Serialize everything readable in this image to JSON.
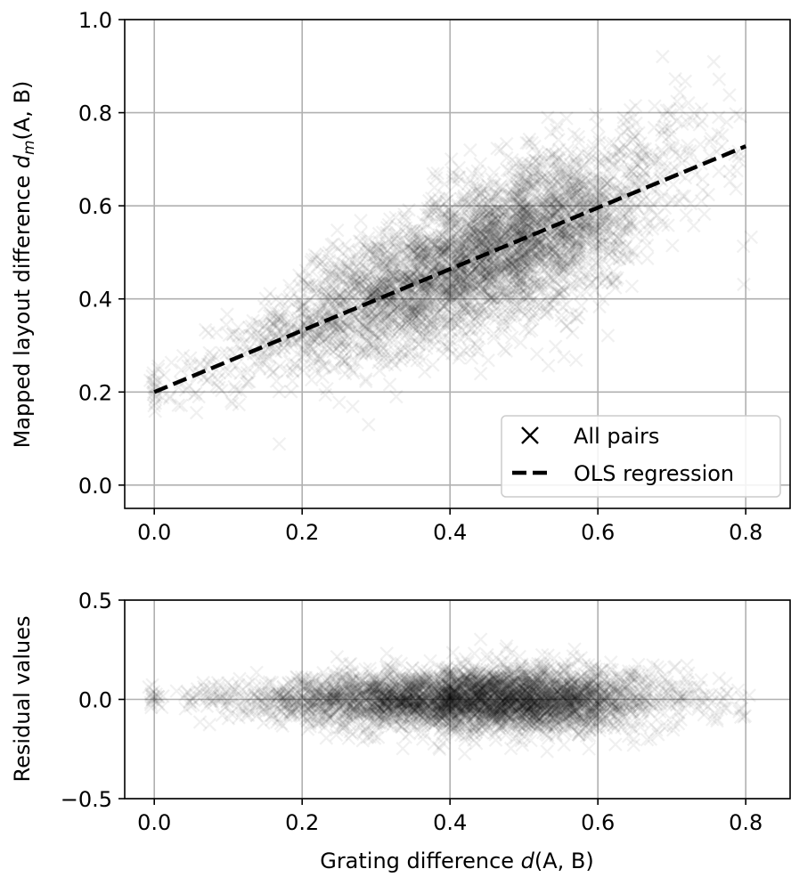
{
  "chart_data": [
    {
      "type": "scatter",
      "panel": "top",
      "xlabel": "",
      "ylabel_text": "Mapped layout difference ",
      "ylabel_math": "d",
      "ylabel_sub": "m",
      "ylabel_args": "(A, B)",
      "xlim": [
        -0.04,
        0.86
      ],
      "ylim": [
        -0.05,
        1.0
      ],
      "xticks": [
        0.0,
        0.2,
        0.4,
        0.6,
        0.8
      ],
      "xtick_labels": [
        "0.0",
        "0.2",
        "0.4",
        "0.6",
        "0.8"
      ],
      "yticks": [
        0.0,
        0.2,
        0.4,
        0.6,
        0.8,
        1.0
      ],
      "ytick_labels": [
        "0.0",
        "0.2",
        "0.4",
        "0.6",
        "0.8",
        "1.0"
      ],
      "grid": true,
      "legend_position": "lower-right",
      "legend": [
        {
          "label": "All pairs",
          "marker": "x"
        },
        {
          "label": "OLS regression",
          "style": "dashed"
        }
      ],
      "regression": {
        "intercept": 0.2,
        "slope": 0.66,
        "x_range": [
          0.0,
          0.8
        ]
      },
      "density_clusters": [
        {
          "x": 0.0,
          "y": 0.21,
          "n": 20,
          "sx": 0.004,
          "sy": 0.03
        },
        {
          "x": 0.05,
          "y": 0.22,
          "n": 25,
          "sx": 0.02,
          "sy": 0.04
        },
        {
          "x": 0.1,
          "y": 0.26,
          "n": 40,
          "sx": 0.02,
          "sy": 0.05
        },
        {
          "x": 0.15,
          "y": 0.31,
          "n": 70,
          "sx": 0.02,
          "sy": 0.05
        },
        {
          "x": 0.2,
          "y": 0.34,
          "n": 160,
          "sx": 0.02,
          "sy": 0.06
        },
        {
          "x": 0.25,
          "y": 0.37,
          "n": 240,
          "sx": 0.02,
          "sy": 0.07
        },
        {
          "x": 0.3,
          "y": 0.4,
          "n": 330,
          "sx": 0.02,
          "sy": 0.07
        },
        {
          "x": 0.35,
          "y": 0.43,
          "n": 420,
          "sx": 0.02,
          "sy": 0.07
        },
        {
          "x": 0.4,
          "y": 0.47,
          "n": 520,
          "sx": 0.02,
          "sy": 0.08
        },
        {
          "x": 0.45,
          "y": 0.5,
          "n": 560,
          "sx": 0.02,
          "sy": 0.08
        },
        {
          "x": 0.5,
          "y": 0.53,
          "n": 560,
          "sx": 0.02,
          "sy": 0.08
        },
        {
          "x": 0.55,
          "y": 0.55,
          "n": 460,
          "sx": 0.02,
          "sy": 0.08
        },
        {
          "x": 0.6,
          "y": 0.58,
          "n": 280,
          "sx": 0.02,
          "sy": 0.08
        },
        {
          "x": 0.65,
          "y": 0.64,
          "n": 130,
          "sx": 0.02,
          "sy": 0.08
        },
        {
          "x": 0.7,
          "y": 0.7,
          "n": 60,
          "sx": 0.02,
          "sy": 0.08
        },
        {
          "x": 0.75,
          "y": 0.72,
          "n": 30,
          "sx": 0.02,
          "sy": 0.08
        },
        {
          "x": 0.79,
          "y": 0.68,
          "n": 10,
          "sx": 0.01,
          "sy": 0.1
        }
      ]
    },
    {
      "type": "scatter",
      "panel": "bottom",
      "xlabel_text": "Grating difference ",
      "xlabel_math": "d",
      "xlabel_args": "(A, B)",
      "ylabel": "Residual values",
      "xlim": [
        -0.04,
        0.86
      ],
      "ylim": [
        -0.5,
        0.5
      ],
      "xticks": [
        0.0,
        0.2,
        0.4,
        0.6,
        0.8
      ],
      "xtick_labels": [
        "0.0",
        "0.2",
        "0.4",
        "0.6",
        "0.8"
      ],
      "yticks": [
        -0.5,
        0.0,
        0.5
      ],
      "ytick_labels": [
        "−0.5",
        "0.0",
        "0.5"
      ],
      "grid": true,
      "density_clusters": [
        {
          "x": 0.0,
          "y": 0.0,
          "n": 20,
          "sx": 0.004,
          "sy": 0.03
        },
        {
          "x": 0.05,
          "y": 0.0,
          "n": 25,
          "sx": 0.02,
          "sy": 0.04
        },
        {
          "x": 0.1,
          "y": 0.0,
          "n": 40,
          "sx": 0.02,
          "sy": 0.05
        },
        {
          "x": 0.15,
          "y": 0.0,
          "n": 70,
          "sx": 0.02,
          "sy": 0.05
        },
        {
          "x": 0.2,
          "y": 0.0,
          "n": 160,
          "sx": 0.02,
          "sy": 0.06
        },
        {
          "x": 0.25,
          "y": 0.0,
          "n": 240,
          "sx": 0.02,
          "sy": 0.07
        },
        {
          "x": 0.3,
          "y": 0.0,
          "n": 330,
          "sx": 0.02,
          "sy": 0.07
        },
        {
          "x": 0.35,
          "y": 0.0,
          "n": 420,
          "sx": 0.02,
          "sy": 0.07
        },
        {
          "x": 0.4,
          "y": 0.0,
          "n": 520,
          "sx": 0.02,
          "sy": 0.08
        },
        {
          "x": 0.45,
          "y": 0.0,
          "n": 560,
          "sx": 0.02,
          "sy": 0.08
        },
        {
          "x": 0.5,
          "y": 0.0,
          "n": 560,
          "sx": 0.02,
          "sy": 0.08
        },
        {
          "x": 0.55,
          "y": 0.0,
          "n": 460,
          "sx": 0.02,
          "sy": 0.08
        },
        {
          "x": 0.6,
          "y": 0.0,
          "n": 280,
          "sx": 0.02,
          "sy": 0.08
        },
        {
          "x": 0.65,
          "y": 0.0,
          "n": 130,
          "sx": 0.02,
          "sy": 0.08
        },
        {
          "x": 0.7,
          "y": 0.02,
          "n": 60,
          "sx": 0.02,
          "sy": 0.08
        },
        {
          "x": 0.75,
          "y": 0.0,
          "n": 30,
          "sx": 0.02,
          "sy": 0.08
        },
        {
          "x": 0.79,
          "y": -0.05,
          "n": 10,
          "sx": 0.01,
          "sy": 0.1
        }
      ]
    }
  ],
  "colors": {
    "marker": "#000000",
    "regression_line": "#000000",
    "grid": "#b0b0b0",
    "background": "#ffffff"
  }
}
